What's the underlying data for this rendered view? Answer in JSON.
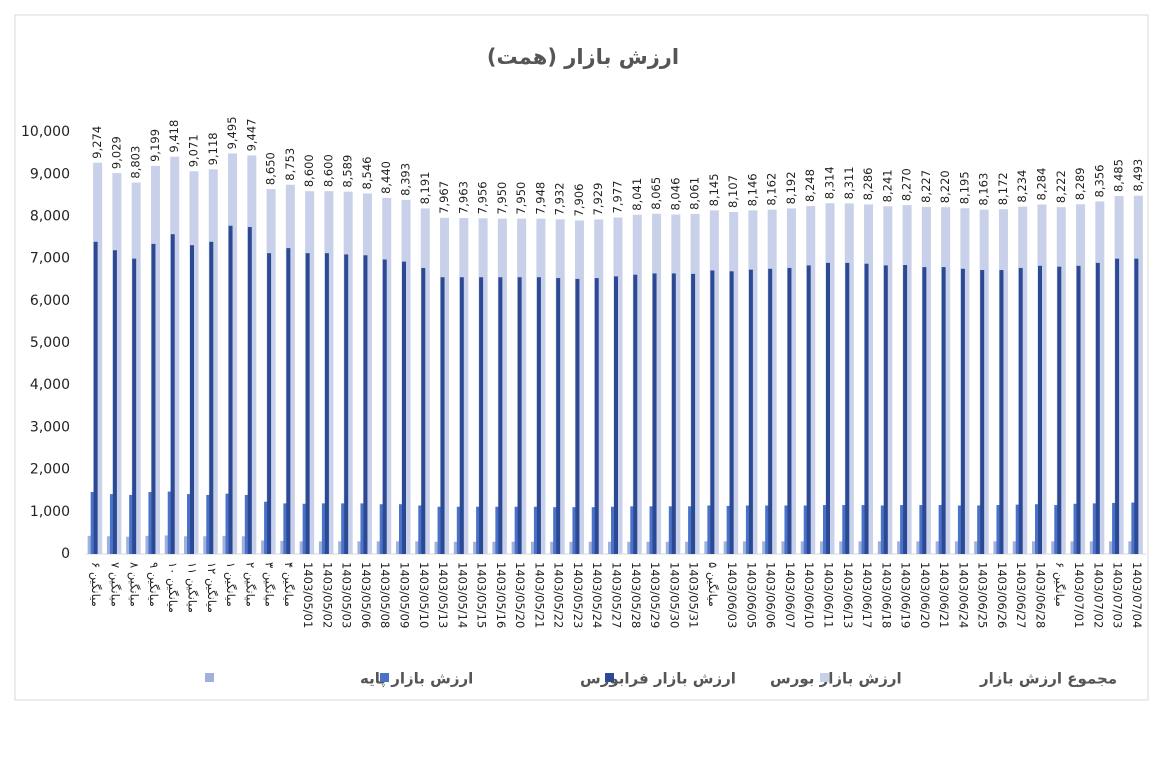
{
  "chart_data": {
    "type": "bar",
    "title": "ارزش بازار (همت)",
    "categories": [
      "میانگین ۶",
      "میانگین ۷",
      "میانگین ۸",
      "میانگین ۹",
      "میانگین ۱۰",
      "میانگین ۱۱",
      "میانگین ۱۲",
      "میانگین ۱",
      "میانگین ۲",
      "میانگین ۳",
      "میانگین ۴",
      "1403/05/01",
      "1403/05/02",
      "1403/05/03",
      "1403/05/06",
      "1403/05/08",
      "1403/05/09",
      "1403/05/10",
      "1403/05/13",
      "1403/05/14",
      "1403/05/15",
      "1403/05/16",
      "1403/05/20",
      "1403/05/21",
      "1403/05/22",
      "1403/05/23",
      "1403/05/24",
      "1403/05/27",
      "1403/05/28",
      "1403/05/29",
      "1403/05/30",
      "1403/05/31",
      "میانگین ۵",
      "1403/06/03",
      "1403/06/05",
      "1403/06/06",
      "1403/06/07",
      "1403/06/10",
      "1403/06/11",
      "1403/06/13",
      "1403/06/17",
      "1403/06/18",
      "1403/06/19",
      "1403/06/20",
      "1403/06/21",
      "1403/06/24",
      "1403/06/25",
      "1403/06/26",
      "1403/06/27",
      "1403/06/28",
      "میانگین ۶",
      "1403/07/01",
      "1403/07/02",
      "1403/07/03",
      "1403/07/04"
    ],
    "series": [
      {
        "name": "ارزش بازار پایه",
        "color": "#9fb2dc",
        "values": [
          430,
          420,
          410,
          430,
          440,
          420,
          420,
          430,
          420,
          320,
          310,
          300,
          300,
          300,
          300,
          300,
          300,
          300,
          290,
          290,
          290,
          290,
          290,
          290,
          290,
          290,
          290,
          290,
          290,
          290,
          290,
          290,
          300,
          300,
          300,
          300,
          300,
          300,
          300,
          300,
          300,
          300,
          300,
          300,
          300,
          300,
          300,
          300,
          300,
          300,
          300,
          300,
          300,
          300,
          300
        ]
      },
      {
        "name": "ارزش بازار فرابورس",
        "color": "#4a72c8",
        "values": [
          1470,
          1420,
          1400,
          1470,
          1480,
          1420,
          1400,
          1430,
          1400,
          1240,
          1200,
          1190,
          1200,
          1200,
          1200,
          1180,
          1180,
          1150,
          1120,
          1120,
          1120,
          1120,
          1120,
          1120,
          1110,
          1110,
          1110,
          1120,
          1130,
          1130,
          1130,
          1130,
          1150,
          1140,
          1150,
          1150,
          1150,
          1150,
          1160,
          1160,
          1160,
          1150,
          1160,
          1160,
          1160,
          1150,
          1150,
          1160,
          1170,
          1180,
          1160,
          1190,
          1200,
          1210,
          1220
        ]
      },
      {
        "name": "ارزش بازار بورس",
        "color": "#2c4a94",
        "values": [
          7400,
          7200,
          7000,
          7350,
          7580,
          7320,
          7400,
          7780,
          7750,
          7130,
          7250,
          7130,
          7130,
          7100,
          7080,
          6980,
          6930,
          6780,
          6560,
          6560,
          6560,
          6560,
          6560,
          6560,
          6540,
          6520,
          6540,
          6580,
          6620,
          6650,
          6650,
          6640,
          6720,
          6700,
          6740,
          6760,
          6780,
          6840,
          6900,
          6900,
          6880,
          6840,
          6850,
          6800,
          6800,
          6760,
          6730,
          6730,
          6780,
          6830,
          6810,
          6830,
          6900,
          7000,
          7000
        ]
      },
      {
        "name": "مجموع ارزش بازار",
        "color": "#c9d1ea",
        "values": [
          9274,
          9029,
          8803,
          9199,
          9418,
          9071,
          9118,
          9495,
          9447,
          8650,
          8753,
          8600,
          8600,
          8589,
          8546,
          8440,
          8393,
          8191,
          7967,
          7963,
          7956,
          7950,
          7950,
          7948,
          7932,
          7906,
          7929,
          7977,
          8041,
          8065,
          8046,
          8061,
          8145,
          8107,
          8146,
          8162,
          8192,
          8248,
          8314,
          8311,
          8286,
          8241,
          8270,
          8227,
          8220,
          8195,
          8163,
          8172,
          8234,
          8284,
          8222,
          8289,
          8356,
          8485,
          8493
        ],
        "value_labels": [
          "9,274",
          "9,029",
          "8,803",
          "9,199",
          "9,418",
          "9,071",
          "9,118",
          "9,495",
          "9,447",
          "8,650",
          "8,753",
          "8,600",
          "8,600",
          "8,589",
          "8,546",
          "8,440",
          "8,393",
          "8,191",
          "7,967",
          "7,963",
          "7,956",
          "7,950",
          "7,950",
          "7,948",
          "7,932",
          "7,906",
          "7,929",
          "7,977",
          "8,041",
          "8,065",
          "8,046",
          "8,061",
          "8,145",
          "8,107",
          "8,146",
          "8,162",
          "8,192",
          "8,248",
          "8,314",
          "8,311",
          "8,286",
          "8,241",
          "8,270",
          "8,227",
          "8,220",
          "8,195",
          "8,163",
          "8,172",
          "8,234",
          "8,284",
          "8,222",
          "8,289",
          "8,356",
          "8,485",
          "8,493"
        ]
      }
    ],
    "ylim": [
      0,
      10500
    ],
    "yticks": [
      0,
      {
        "value": 1000,
        "label": "1,000"
      },
      {
        "value": 2000,
        "label": "2,000"
      },
      {
        "value": 3000,
        "label": "3,000"
      },
      {
        "value": 4000,
        "label": "4,000"
      },
      {
        "value": 5000,
        "label": "5,000"
      },
      {
        "value": 6000,
        "label": "6,000"
      },
      {
        "value": 7000,
        "label": "7,000"
      },
      {
        "value": 8000,
        "label": "8,000"
      },
      {
        "value": 9000,
        "label": "9,000"
      },
      {
        "value": 10000,
        "label": "10,000"
      }
    ],
    "grid": false,
    "legend": "bottom"
  }
}
